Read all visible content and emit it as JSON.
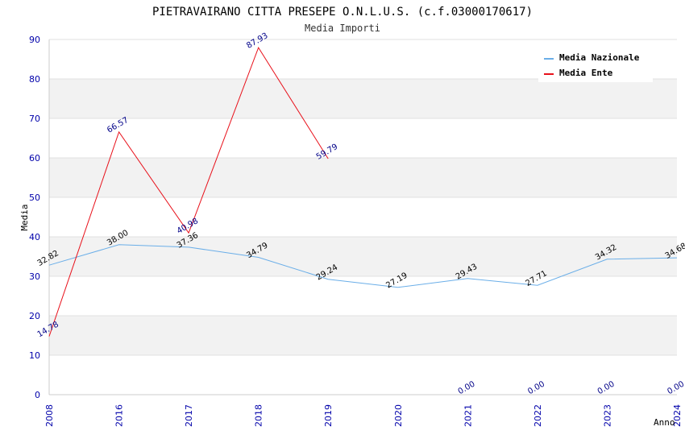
{
  "chart_data": {
    "type": "line",
    "title": "PIETRAVAIRANO CITTA PRESEPE O.N.L.U.S. (c.f.03000170617)",
    "subtitle": "Media Importi",
    "xlabel": "Anno",
    "ylabel": "Media",
    "ylim": [
      0,
      90
    ],
    "yticks": [
      0,
      10,
      20,
      30,
      40,
      50,
      60,
      70,
      80,
      90
    ],
    "categories": [
      "2008",
      "2016",
      "2017",
      "2018",
      "2019",
      "2020",
      "2021",
      "2022",
      "2023",
      "2024"
    ],
    "grid": "horizontal alternating bands",
    "legend_position": "top-right",
    "series": [
      {
        "name": "Media Nazionale",
        "color": "#6aaee8",
        "values": [
          32.82,
          38.0,
          37.36,
          34.79,
          29.24,
          27.19,
          29.43,
          27.71,
          34.32,
          34.68
        ],
        "labels": [
          "32.82",
          "38.00",
          "37.36",
          "34.79",
          "29.24",
          "27.19",
          "29.43",
          "27.71",
          "34.32",
          "34.68"
        ]
      },
      {
        "name": "Media Ente",
        "color": "#e8101a",
        "values": [
          14.78,
          66.57,
          40.98,
          87.93,
          59.79,
          null,
          null,
          null,
          null,
          null
        ],
        "labels": [
          "14.78",
          "66.57",
          "40.98",
          "87.93",
          "59.79",
          "",
          "0.00",
          "0.00",
          "0.00",
          "0.00"
        ]
      }
    ]
  }
}
